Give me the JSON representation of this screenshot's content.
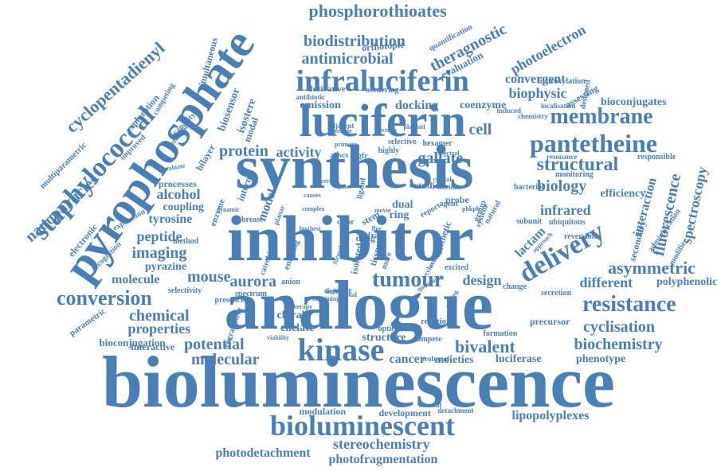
{
  "colors": {
    "word": "#4a7fb5",
    "background": "#ffffff"
  },
  "words": [
    "bioluminescence",
    "analogue",
    "inhibitor",
    "synthesis",
    "luciferin",
    "pyrophosphate",
    "infraluciferin",
    "kinase",
    "bioluminescent",
    "staphylococcal",
    "pantetheine",
    "delivery",
    "membrane",
    "resistance",
    "tumour",
    "conversion",
    "phosphorothioates",
    "structural",
    "asymmetric",
    "cyclopentadienyl",
    "nanoparticles",
    "biodistribution",
    "antimicrobial",
    "theragnostic",
    "photoelectron",
    "convergent",
    "biophysic",
    "bioconjugates",
    "protein",
    "activity",
    "gallate",
    "cell",
    "biology",
    "infrared",
    "fluorescence",
    "spectroscopy",
    "interaction",
    "alcohol",
    "coupling",
    "tyrosine",
    "peptide",
    "imaging",
    "pyrazine",
    "molecule",
    "mouse",
    "aurora",
    "design",
    "different",
    "polyphenolic",
    "chemical",
    "properties",
    "cyclisation",
    "potential",
    "molecular",
    "bivalent",
    "biochemistry",
    "cancer",
    "moieties",
    "luciferase",
    "phenotype",
    "lipopolyplexes",
    "stereochemistry",
    "photodetachment",
    "photofragmentation",
    "lactam",
    "efficiency",
    "emission",
    "docking",
    "coenzyme",
    "biosensor",
    "isostere",
    "simultaneous",
    "exploration",
    "multiparametric",
    "modulation",
    "development",
    "structure",
    "chelate",
    "chiral",
    "model",
    "studies",
    "ring",
    "dual",
    "bioconjugation",
    "interactive",
    "parametric",
    "hydroxylation",
    "precursor",
    "reaction",
    "evaluation",
    "orthotopic",
    "quantification",
    "derivative",
    "occurring",
    "assessing",
    "responsible",
    "administration",
    "secondary",
    "modifier",
    "ubiquitous",
    "reversible",
    "subunit",
    "bacterial",
    "monitoring",
    "change",
    "formation",
    "secretion",
    "profound",
    "compete",
    "optical",
    "therapy",
    "selectivity",
    "presence",
    "spectrum",
    "breast",
    "catechin",
    "color",
    "isolated",
    "tissue",
    "infra",
    "stem",
    "report",
    "enzyme",
    "internal",
    "bilayer",
    "processes",
    "improved",
    "capacity",
    "competing",
    "electronic",
    "recognition",
    "expression",
    "method",
    "engraftment",
    "viability",
    "adscs",
    "egfr",
    "highly",
    "selective",
    "hexamer",
    "primary",
    "probe",
    "agent",
    "crystal",
    "synthetic",
    "detachment",
    "current",
    "system",
    "natural",
    "group",
    "antibiotic",
    "emitting",
    "anion",
    "diene",
    "analog",
    "visual",
    "more",
    "modal",
    "adjacent",
    "possible",
    "electron",
    "plasmid",
    "adenosine",
    "ligand",
    "dynamic",
    "planar",
    "furthest",
    "fluc",
    "drug",
    "single",
    "excited",
    "phkph",
    "movie",
    "designed",
    "chemistry",
    "induced",
    "localisation",
    "resonance",
    "spectral",
    "quenching",
    "uniting",
    "approach",
    "oxyluciferin",
    "evaluate",
    "formulated",
    "causes",
    "imagining",
    "versus",
    "elucidate",
    "complex",
    "overcome",
    "plane"
  ]
}
